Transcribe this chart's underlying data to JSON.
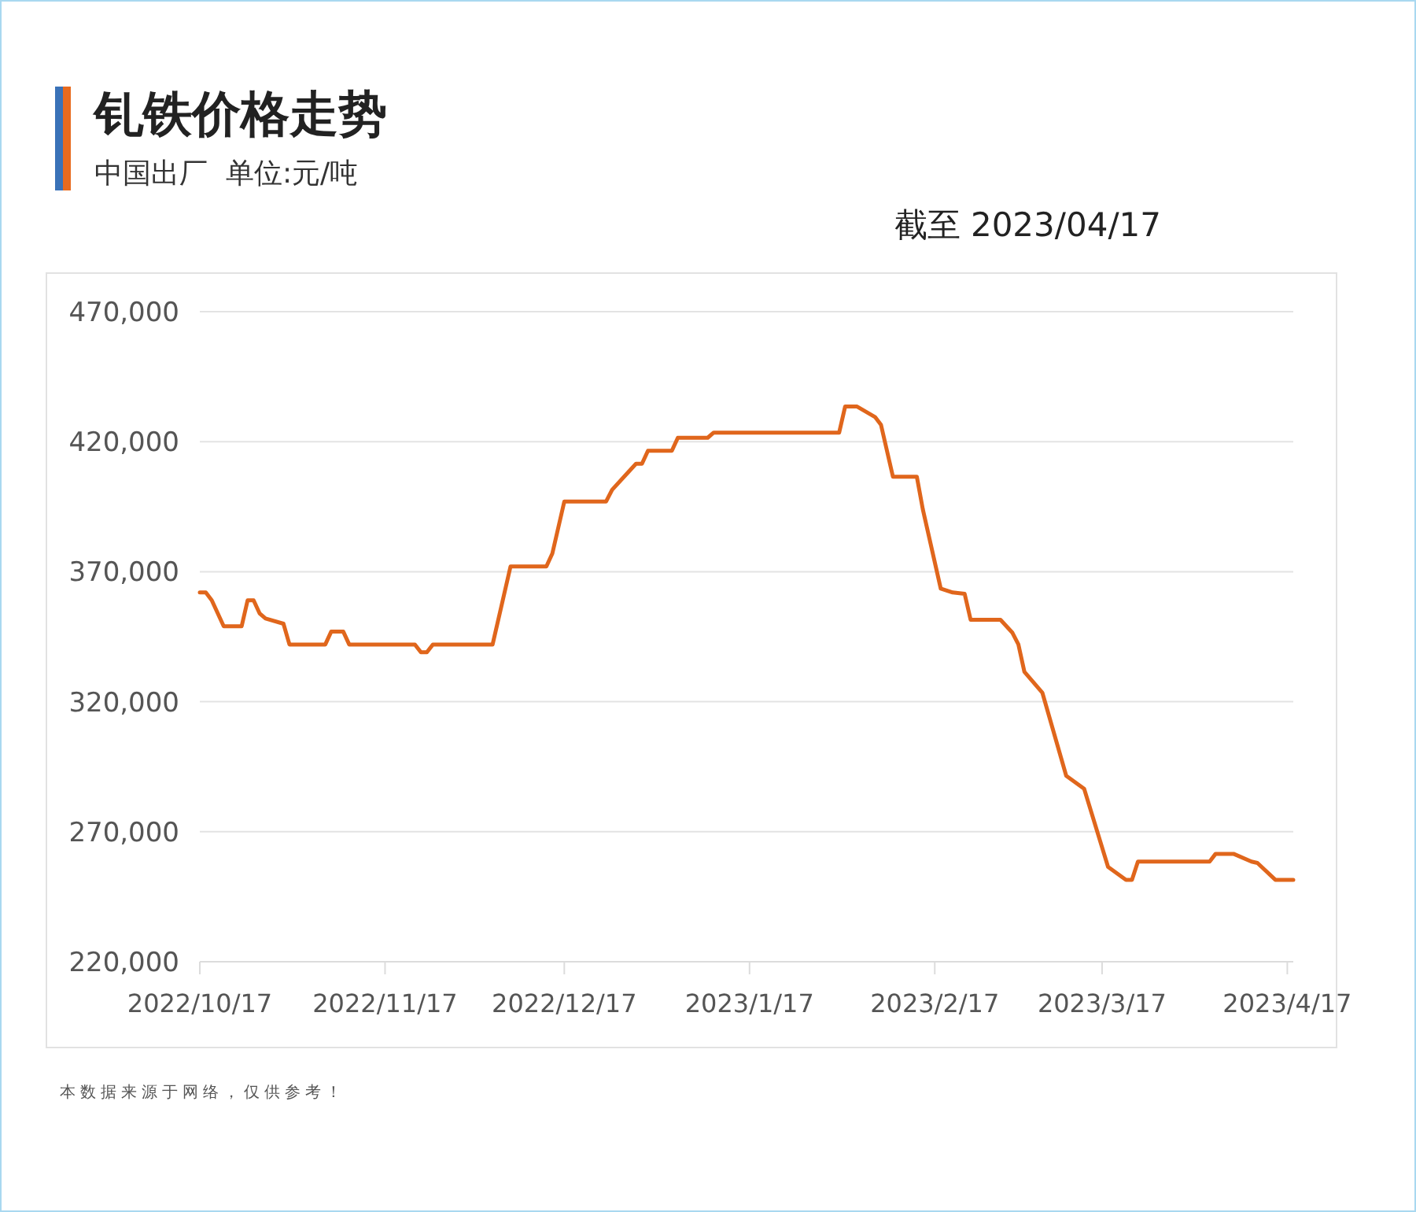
{
  "chart_data": {
    "type": "line",
    "title": "钆铁价格走势",
    "subtitle": "中国出厂  单位:元/吨",
    "annotations": [
      "截至 2023/04/17",
      "本数据来源于网络，仅供参考！"
    ],
    "x": [
      "2022-10-17",
      "2022-10-18",
      "2022-10-19",
      "2022-10-21",
      "2022-10-24",
      "2022-10-25",
      "2022-10-26",
      "2022-10-27",
      "2022-10-28",
      "2022-10-31",
      "2022-11-01",
      "2022-11-07",
      "2022-11-08",
      "2022-11-10",
      "2022-11-11",
      "2022-11-22",
      "2022-11-23",
      "2022-11-24",
      "2022-11-25",
      "2022-12-05",
      "2022-12-08",
      "2022-12-14",
      "2022-12-15",
      "2022-12-17",
      "2022-12-24",
      "2022-12-25",
      "2022-12-27",
      "2022-12-29",
      "2022-12-30",
      "2022-12-31",
      "2023-01-04",
      "2023-01-05",
      "2023-01-10",
      "2023-01-11",
      "2023-02-01",
      "2023-02-02",
      "2023-02-04",
      "2023-02-07",
      "2023-02-08",
      "2023-02-10",
      "2023-02-14",
      "2023-02-15",
      "2023-02-18",
      "2023-02-20",
      "2023-02-22",
      "2023-02-23",
      "2023-02-28",
      "2023-03-02",
      "2023-03-03",
      "2023-03-04",
      "2023-03-07",
      "2023-03-11",
      "2023-03-14",
      "2023-03-18",
      "2023-03-21",
      "2023-03-22",
      "2023-03-23",
      "2023-04-04",
      "2023-04-05",
      "2023-04-08",
      "2023-04-11",
      "2023-04-12",
      "2023-04-15",
      "2023-04-18"
    ],
    "series": [
      {
        "color": "#e0661c",
        "values": [
          362000,
          362000,
          359000,
          349000,
          349000,
          359000,
          359000,
          354000,
          352000,
          350000,
          342000,
          342000,
          347000,
          347000,
          342000,
          342000,
          339000,
          339000,
          342000,
          342000,
          372000,
          372000,
          377000,
          397000,
          397000,
          401500,
          406500,
          411500,
          411500,
          416500,
          416500,
          421500,
          421500,
          423500,
          423500,
          433500,
          433500,
          429500,
          426500,
          406500,
          406500,
          394000,
          363500,
          362000,
          361500,
          351500,
          351500,
          346500,
          342000,
          331500,
          323500,
          291500,
          286500,
          256500,
          251500,
          251500,
          258500,
          258500,
          261500,
          261500,
          258500,
          258000,
          251500,
          251500
        ]
      }
    ],
    "xlim": [
      "2022-10-17",
      "2023-04-18"
    ],
    "xticks": [
      {
        "value": "2022-10-17",
        "label": "2022/10/17"
      },
      {
        "value": "2022-11-17",
        "label": "2022/11/17"
      },
      {
        "value": "2022-12-17",
        "label": "2022/12/17"
      },
      {
        "value": "2023-01-17",
        "label": "2023/1/17"
      },
      {
        "value": "2023-02-17",
        "label": "2023/2/17"
      },
      {
        "value": "2023-03-17",
        "label": "2023/3/17"
      },
      {
        "value": "2023-04-17",
        "label": "2023/4/17"
      }
    ],
    "ylim": [
      220000,
      470000
    ],
    "yticks": [
      {
        "value": 220000,
        "label": "220,000"
      },
      {
        "value": 270000,
        "label": "270,000"
      },
      {
        "value": 320000,
        "label": "320,000"
      },
      {
        "value": 370000,
        "label": "370,000"
      },
      {
        "value": 420000,
        "label": "420,000"
      },
      {
        "value": 470000,
        "label": "470,000"
      }
    ],
    "grid": "y",
    "marker": "none",
    "line_style": "solid"
  }
}
